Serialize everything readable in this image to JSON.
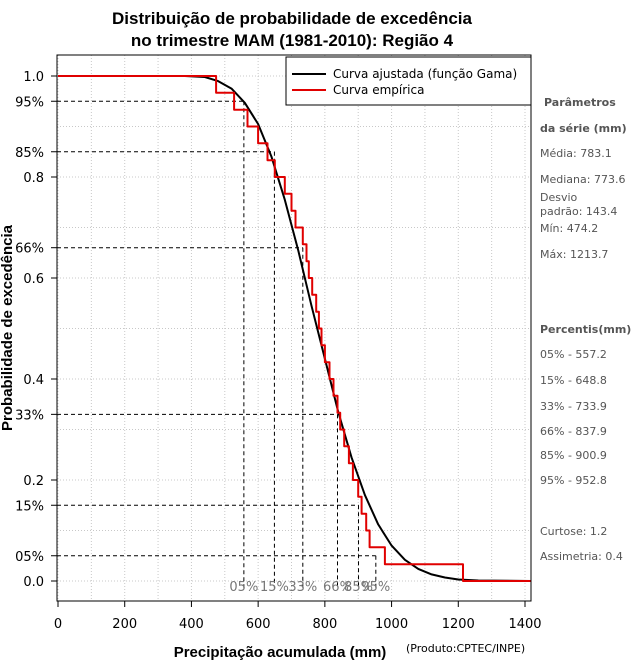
{
  "chart_data": {
    "type": "line",
    "title_line1": "Distribuição de probabilidade de excedência",
    "title_line2": "no trimestre MAM (1981-2010): Região 4",
    "xlabel": "Precipitação acumulada (mm)",
    "ylabel": "Probabilidade de excedência",
    "xlim": [
      0,
      1400
    ],
    "ylim": [
      -0.05,
      1.05
    ],
    "x_ticks": [
      "0",
      "200",
      "400",
      "600",
      "800",
      "1000",
      "1200",
      "1400"
    ],
    "y_ticks": [
      {
        "value": 1.0,
        "label": "1.0"
      },
      {
        "value": 0.95,
        "label": "95%"
      },
      {
        "value": 0.85,
        "label": "85%"
      },
      {
        "value": 0.8,
        "label": "0.8"
      },
      {
        "value": 0.66,
        "label": "66%"
      },
      {
        "value": 0.6,
        "label": "0.6"
      },
      {
        "value": 0.4,
        "label": "0.4"
      },
      {
        "value": 0.33,
        "label": "33%"
      },
      {
        "value": 0.2,
        "label": "0.2"
      },
      {
        "value": 0.15,
        "label": "15%"
      },
      {
        "value": 0.05,
        "label": "05%"
      },
      {
        "value": 0.0,
        "label": "0.0"
      }
    ],
    "legend": {
      "position": "top-right",
      "entries": [
        {
          "label": "Curva ajustada (função Gama)",
          "color": "#000000"
        },
        {
          "label": "Curva empírica",
          "color": "#e00000"
        }
      ]
    },
    "series": [
      {
        "name": "Curva ajustada (função Gama)",
        "color": "#000000",
        "points": [
          [
            0,
            1.0
          ],
          [
            380,
            1.0
          ],
          [
            440,
            0.998
          ],
          [
            480,
            0.99
          ],
          [
            520,
            0.975
          ],
          [
            560,
            0.947
          ],
          [
            600,
            0.905
          ],
          [
            640,
            0.84
          ],
          [
            680,
            0.755
          ],
          [
            720,
            0.655
          ],
          [
            760,
            0.545
          ],
          [
            800,
            0.44
          ],
          [
            840,
            0.335
          ],
          [
            880,
            0.245
          ],
          [
            920,
            0.17
          ],
          [
            960,
            0.112
          ],
          [
            1000,
            0.07
          ],
          [
            1040,
            0.042
          ],
          [
            1080,
            0.024
          ],
          [
            1120,
            0.013
          ],
          [
            1160,
            0.007
          ],
          [
            1200,
            0.003
          ],
          [
            1260,
            0.001
          ],
          [
            1420,
            0.0
          ]
        ]
      },
      {
        "name": "Curva empírica",
        "color": "#e00000",
        "points": [
          [
            0,
            1.0
          ],
          [
            474,
            1.0
          ],
          [
            474,
            0.967
          ],
          [
            528,
            0.967
          ],
          [
            528,
            0.933
          ],
          [
            568,
            0.933
          ],
          [
            568,
            0.9
          ],
          [
            600,
            0.9
          ],
          [
            600,
            0.867
          ],
          [
            628,
            0.867
          ],
          [
            628,
            0.833
          ],
          [
            650,
            0.833
          ],
          [
            650,
            0.8
          ],
          [
            680,
            0.8
          ],
          [
            680,
            0.767
          ],
          [
            700,
            0.767
          ],
          [
            700,
            0.733
          ],
          [
            712,
            0.733
          ],
          [
            712,
            0.7
          ],
          [
            734,
            0.7
          ],
          [
            734,
            0.667
          ],
          [
            745,
            0.667
          ],
          [
            745,
            0.633
          ],
          [
            752,
            0.633
          ],
          [
            752,
            0.6
          ],
          [
            762,
            0.6
          ],
          [
            762,
            0.567
          ],
          [
            774,
            0.567
          ],
          [
            774,
            0.533
          ],
          [
            782,
            0.533
          ],
          [
            782,
            0.5
          ],
          [
            790,
            0.5
          ],
          [
            790,
            0.467
          ],
          [
            800,
            0.467
          ],
          [
            800,
            0.433
          ],
          [
            814,
            0.433
          ],
          [
            814,
            0.4
          ],
          [
            826,
            0.4
          ],
          [
            826,
            0.367
          ],
          [
            838,
            0.367
          ],
          [
            838,
            0.333
          ],
          [
            846,
            0.333
          ],
          [
            846,
            0.3
          ],
          [
            858,
            0.3
          ],
          [
            858,
            0.267
          ],
          [
            872,
            0.267
          ],
          [
            872,
            0.233
          ],
          [
            884,
            0.233
          ],
          [
            884,
            0.2
          ],
          [
            900,
            0.2
          ],
          [
            900,
            0.167
          ],
          [
            910,
            0.167
          ],
          [
            910,
            0.133
          ],
          [
            924,
            0.133
          ],
          [
            924,
            0.1
          ],
          [
            934,
            0.1
          ],
          [
            934,
            0.067
          ],
          [
            980,
            0.067
          ],
          [
            980,
            0.033
          ],
          [
            1214,
            0.033
          ],
          [
            1214,
            0.0
          ],
          [
            1420,
            0.0
          ]
        ]
      }
    ],
    "percentile_refs": [
      {
        "label": "05%",
        "prob": 0.95,
        "x": 557.2
      },
      {
        "label": "15%",
        "prob": 0.85,
        "x": 648.8
      },
      {
        "label": "33%",
        "prob": 0.66,
        "x": 733.9
      },
      {
        "label": "66%",
        "prob": 0.33,
        "x": 837.9
      },
      {
        "label": "85%",
        "prob": 0.15,
        "x": 900.9
      },
      {
        "label": "95%",
        "prob": 0.05,
        "x": 952.8
      }
    ]
  },
  "side_panel": {
    "params_title1": "Parâmetros",
    "params_title2": "da série (mm)",
    "media": "Média: 783.1",
    "mediana": "Mediana: 773.6",
    "desvio1": "Desvio",
    "desvio2": "padrão: 143.4",
    "min": "Mín: 474.2",
    "max": "Máx: 1213.7",
    "percentis_title": "Percentis(mm)",
    "p05": "05% - 557.2",
    "p15": "15% - 648.8",
    "p33": "33% - 733.9",
    "p66": "66% - 837.9",
    "p85": "85% - 900.9",
    "p95": "95% - 952.8",
    "curtose": "Curtose: 1.2",
    "assimetria": "Assimetria: 0.4"
  },
  "credit": "(Produto:CPTEC/INPE)"
}
